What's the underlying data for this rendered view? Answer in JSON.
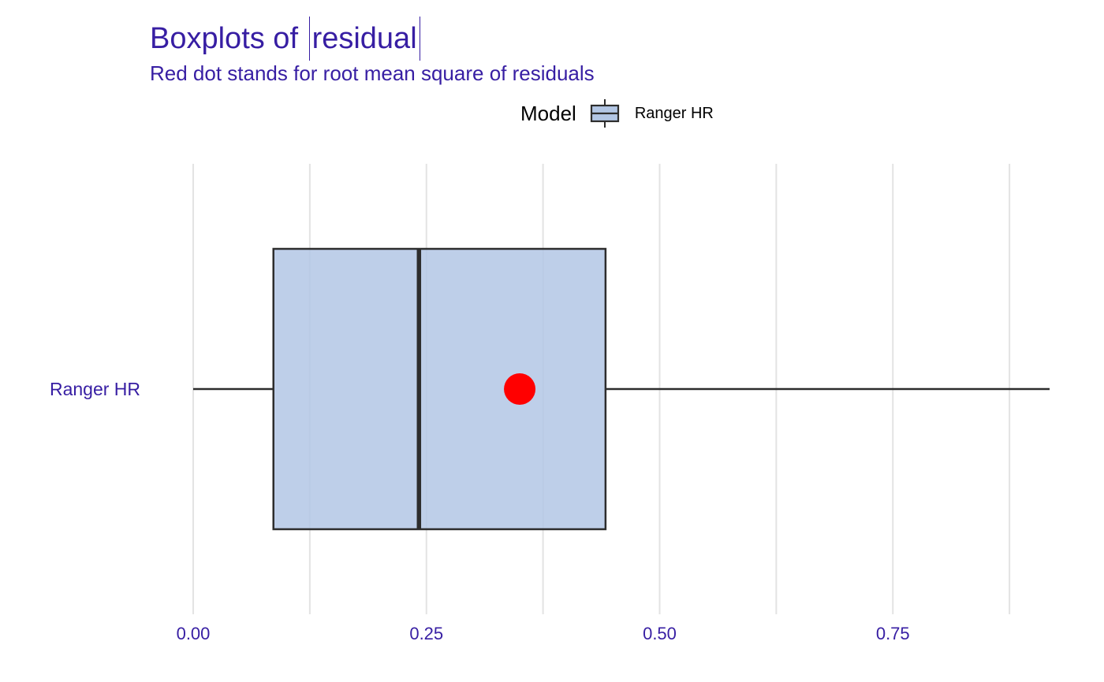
{
  "chart_data": {
    "type": "boxplot",
    "title_prefix": "Boxplots of ",
    "title_variable": "residual",
    "subtitle": "Red dot stands for root mean square of residuals",
    "legend": {
      "title": "Model",
      "position": "top",
      "entries": [
        "Ranger HR"
      ]
    },
    "orientation": "horizontal",
    "categories": [
      "Ranger HR"
    ],
    "boxes": [
      {
        "name": "Ranger HR",
        "whisker_low": 0.0,
        "q1": 0.086,
        "median": 0.242,
        "q3": 0.442,
        "whisker_high": 0.918,
        "rmse": 0.35
      }
    ],
    "xlim": [
      0,
      0.918
    ],
    "x_ticks": [
      {
        "value": 0.0,
        "label": "0.00"
      },
      {
        "value": 0.25,
        "label": "0.25"
      },
      {
        "value": 0.5,
        "label": "0.50"
      },
      {
        "value": 0.75,
        "label": "0.75"
      }
    ],
    "x_minor_gridlines": [
      0.125,
      0.375,
      0.625,
      0.875
    ],
    "grid": true,
    "colors": {
      "box_fill": "#b3c7e5",
      "box_stroke": "#2d2d2d",
      "rmse_dot": "#ff0000",
      "gridline": "#e3e3e3",
      "text_accent": "#371ea3"
    }
  }
}
